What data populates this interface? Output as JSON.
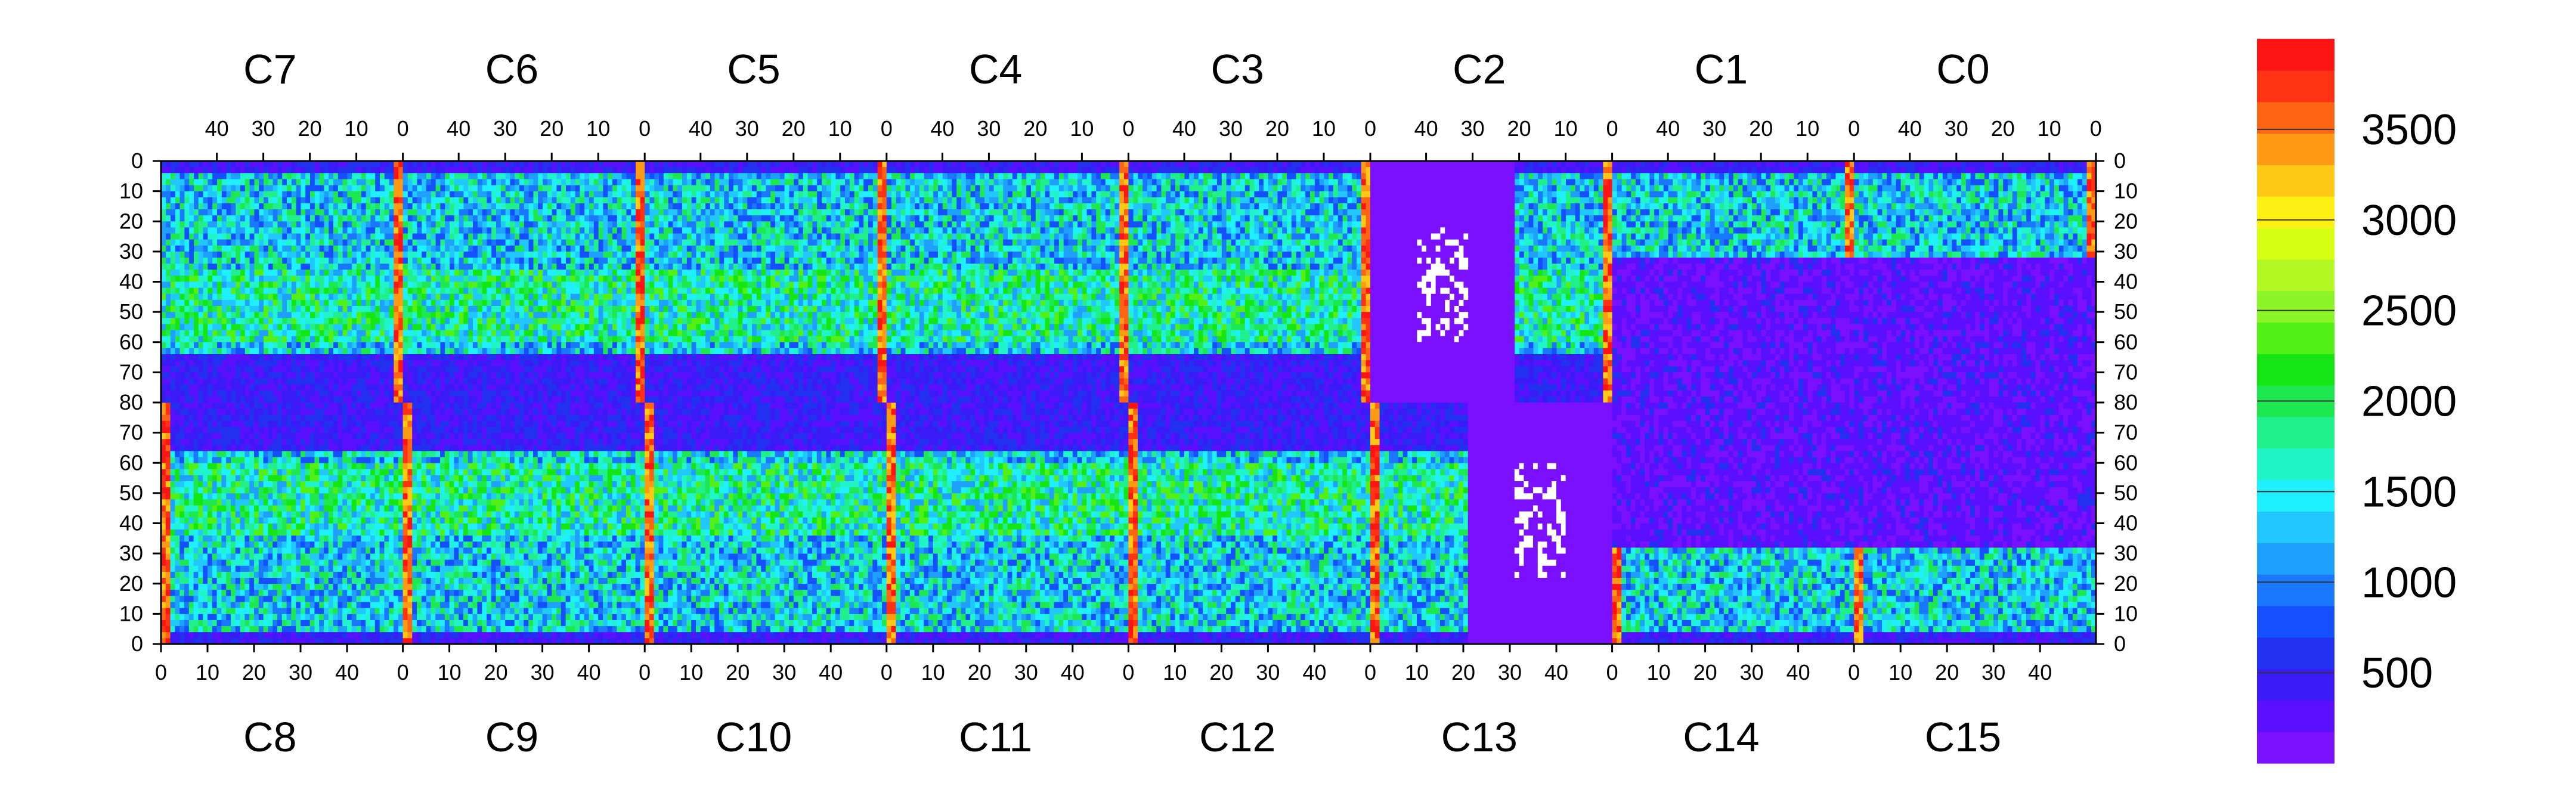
{
  "chart_data": {
    "type": "heatmap",
    "title": "",
    "colorbar": {
      "ticks": [
        500,
        1000,
        1500,
        2000,
        2500,
        3000,
        3500
      ],
      "range": [
        0,
        4000
      ],
      "palette": [
        "#7a10ff",
        "#5a10ff",
        "#3a1af7",
        "#2230f0",
        "#1450ff",
        "#1a78ff",
        "#1ea0ff",
        "#20c8ff",
        "#1ef0ff",
        "#1ff5c8",
        "#20f08c",
        "#1ee850",
        "#14e614",
        "#52f014",
        "#8cf528",
        "#b4f823",
        "#d7ff14",
        "#fff014",
        "#ffc814",
        "#ff9a14",
        "#ff6414",
        "#ff3214",
        "#ff1414"
      ],
      "palette_note_values": "color index = value / 4000 * 22"
    },
    "top_chips": [
      "C7",
      "C6",
      "C5",
      "C4",
      "C3",
      "C2",
      "C1",
      "C0"
    ],
    "bottom_chips": [
      "C8",
      "C9",
      "C10",
      "C11",
      "C12",
      "C13",
      "C14",
      "C15"
    ],
    "top_x_ticks": [
      "40",
      "30",
      "20",
      "10",
      "0"
    ],
    "bottom_x_ticks": [
      "0",
      "10",
      "20",
      "30",
      "40"
    ],
    "y_ticks_top_half": [
      "0",
      "10",
      "20",
      "30",
      "40",
      "50",
      "60",
      "70",
      "80"
    ],
    "y_ticks_bottom_half": [
      "70",
      "60",
      "50",
      "40",
      "30",
      "20",
      "10",
      "0"
    ],
    "xlim_per_chip": [
      0,
      52
    ],
    "ylim_per_half": [
      0,
      80
    ],
    "grid": false
  }
}
